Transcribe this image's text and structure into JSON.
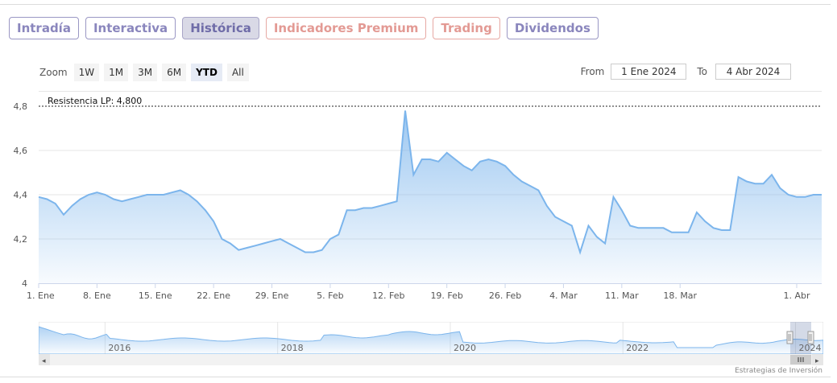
{
  "tabs": [
    {
      "label": "Intradía",
      "style": "normal"
    },
    {
      "label": "Interactiva",
      "style": "normal"
    },
    {
      "label": "Histórica",
      "style": "active"
    },
    {
      "label": "Indicadores Premium",
      "style": "red"
    },
    {
      "label": "Trading",
      "style": "red"
    },
    {
      "label": "Dividendos",
      "style": "normal"
    }
  ],
  "zoom": {
    "label": "Zoom",
    "buttons": [
      "1W",
      "1M",
      "3M",
      "6M",
      "YTD",
      "All"
    ],
    "selected": "YTD"
  },
  "range": {
    "from_label": "From",
    "from_value": "1 Ene 2024",
    "to_label": "To",
    "to_value": "4 Abr 2024"
  },
  "colors": {
    "line": "#7cb5ec",
    "area_top": "#7cb5ec",
    "tab_border": "#9a97c4",
    "tab_red": "#e39a94"
  },
  "chart_data": {
    "type": "area",
    "title": "",
    "xlabel": "",
    "ylabel": "",
    "ylim": [
      4.0,
      4.8
    ],
    "y_ticks": [
      4.0,
      4.2,
      4.4,
      4.6,
      4.8
    ],
    "y_tick_labels": [
      "4",
      "4,2",
      "4,4",
      "4,6",
      "4,8"
    ],
    "x_tick_labels": [
      "1. Ene",
      "8. Ene",
      "15. Ene",
      "22. Ene",
      "29. Ene",
      "5. Feb",
      "12. Feb",
      "19. Feb",
      "26. Feb",
      "4. Mar",
      "11. Mar",
      "18. Mar",
      "1. Abr"
    ],
    "x_tick_days": [
      0,
      7,
      14,
      21,
      28,
      35,
      42,
      49,
      56,
      63,
      70,
      77,
      91
    ],
    "x_range_days": [
      0,
      94
    ],
    "plot_line": {
      "value": 4.8,
      "label": "Resistencia LP: 4,800"
    },
    "series": [
      {
        "days": [
          0,
          1,
          2,
          3,
          4,
          5,
          6,
          7,
          8,
          9,
          10,
          11,
          12,
          13,
          14,
          15,
          16,
          17,
          18,
          19,
          20,
          21,
          22,
          23,
          24,
          25,
          26,
          27,
          28,
          29,
          30,
          31,
          32,
          33,
          34,
          35,
          36,
          37,
          38,
          39,
          40,
          41,
          42,
          43,
          44,
          45,
          46,
          47,
          48,
          49,
          50,
          51,
          52,
          53,
          54,
          55,
          56,
          57,
          58,
          59,
          60,
          61,
          62,
          63,
          64,
          65,
          66,
          67,
          68,
          69,
          70,
          71,
          72,
          73,
          74,
          75,
          76,
          77,
          78,
          79,
          80,
          81,
          82,
          83,
          84,
          85,
          86,
          87,
          88,
          89,
          90,
          91,
          92,
          93,
          94
        ],
        "values": [
          4.39,
          4.38,
          4.36,
          4.31,
          4.35,
          4.38,
          4.4,
          4.41,
          4.4,
          4.38,
          4.37,
          4.38,
          4.39,
          4.4,
          4.4,
          4.4,
          4.41,
          4.42,
          4.4,
          4.37,
          4.33,
          4.28,
          4.2,
          4.18,
          4.15,
          4.16,
          4.17,
          4.18,
          4.19,
          4.2,
          4.18,
          4.16,
          4.14,
          4.14,
          4.15,
          4.2,
          4.22,
          4.33,
          4.33,
          4.34,
          4.34,
          4.35,
          4.36,
          4.37,
          4.78,
          4.49,
          4.56,
          4.56,
          4.55,
          4.59,
          4.56,
          4.53,
          4.51,
          4.55,
          4.56,
          4.55,
          4.53,
          4.49,
          4.46,
          4.44,
          4.42,
          4.35,
          4.3,
          4.28,
          4.26,
          4.14,
          4.26,
          4.21,
          4.18,
          4.39,
          4.33,
          4.26,
          4.25,
          4.25,
          4.25,
          4.25,
          4.23,
          4.23,
          4.23,
          4.32,
          4.28,
          4.25,
          4.24,
          4.24,
          4.48,
          4.46,
          4.45,
          4.45,
          4.49,
          4.43,
          4.4,
          4.39,
          4.39,
          4.4,
          4.4
        ]
      }
    ],
    "navigator": {
      "year_labels": [
        "2016",
        "2018",
        "2020",
        "2022",
        "2024"
      ],
      "year_positions": [
        0.1,
        0.32,
        0.54,
        0.76,
        0.98
      ]
    }
  },
  "credit": "Estrategias de Inversión"
}
